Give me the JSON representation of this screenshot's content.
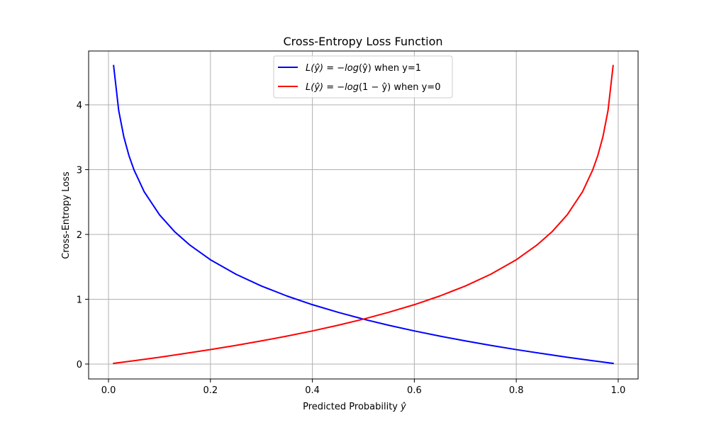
{
  "chart_data": {
    "type": "line",
    "title": "Cross-Entropy Loss Function",
    "xlabel": {
      "text": "Predicted Probability",
      "symbol": "ŷ"
    },
    "ylabel": "Cross-Entropy Loss",
    "xlim": [
      -0.039,
      1.039
    ],
    "ylim": [
      -0.23,
      4.83
    ],
    "xticks": [
      0.0,
      0.2,
      0.4,
      0.6,
      0.8,
      1.0
    ],
    "xtick_labels": [
      "0.0",
      "0.2",
      "0.4",
      "0.6",
      "0.8",
      "1.0"
    ],
    "yticks": [
      0,
      1,
      2,
      3,
      4
    ],
    "ytick_labels": [
      "0",
      "1",
      "2",
      "3",
      "4"
    ],
    "grid": true,
    "legend_placement": "upper-center",
    "series": [
      {
        "name": "L(ŷ) = −log(ŷ) when y=1",
        "legend": {
          "prefix": "L(ŷ) = −",
          "func": "log",
          "arg": "(ŷ)",
          "suffix": " when y=1"
        },
        "color": "#0000ff",
        "x": [
          0.01,
          0.02,
          0.03,
          0.04,
          0.05,
          0.07,
          0.1,
          0.13,
          0.16,
          0.2,
          0.25,
          0.3,
          0.35,
          0.4,
          0.45,
          0.5,
          0.55,
          0.6,
          0.65,
          0.7,
          0.75,
          0.8,
          0.85,
          0.9,
          0.95,
          0.99
        ],
        "y": [
          4.605,
          3.912,
          3.507,
          3.219,
          2.996,
          2.659,
          2.303,
          2.04,
          1.833,
          1.609,
          1.386,
          1.204,
          1.05,
          0.916,
          0.799,
          0.693,
          0.598,
          0.511,
          0.431,
          0.357,
          0.288,
          0.223,
          0.163,
          0.105,
          0.051,
          0.01
        ]
      },
      {
        "name": "L(ŷ) = −log(1 − ŷ) when y=0",
        "legend": {
          "prefix": "L(ŷ) = −",
          "func": "log",
          "arg": "(1 − ŷ)",
          "suffix": " when y=0"
        },
        "color": "#ff0000",
        "x": [
          0.01,
          0.05,
          0.1,
          0.15,
          0.2,
          0.25,
          0.3,
          0.35,
          0.4,
          0.45,
          0.5,
          0.55,
          0.6,
          0.65,
          0.7,
          0.75,
          0.8,
          0.84,
          0.87,
          0.9,
          0.93,
          0.95,
          0.96,
          0.97,
          0.98,
          0.99
        ],
        "y": [
          0.01,
          0.051,
          0.105,
          0.163,
          0.223,
          0.288,
          0.357,
          0.431,
          0.511,
          0.598,
          0.693,
          0.799,
          0.916,
          1.05,
          1.204,
          1.386,
          1.609,
          1.833,
          2.04,
          2.303,
          2.659,
          2.996,
          3.219,
          3.507,
          3.912,
          4.605
        ]
      }
    ]
  }
}
